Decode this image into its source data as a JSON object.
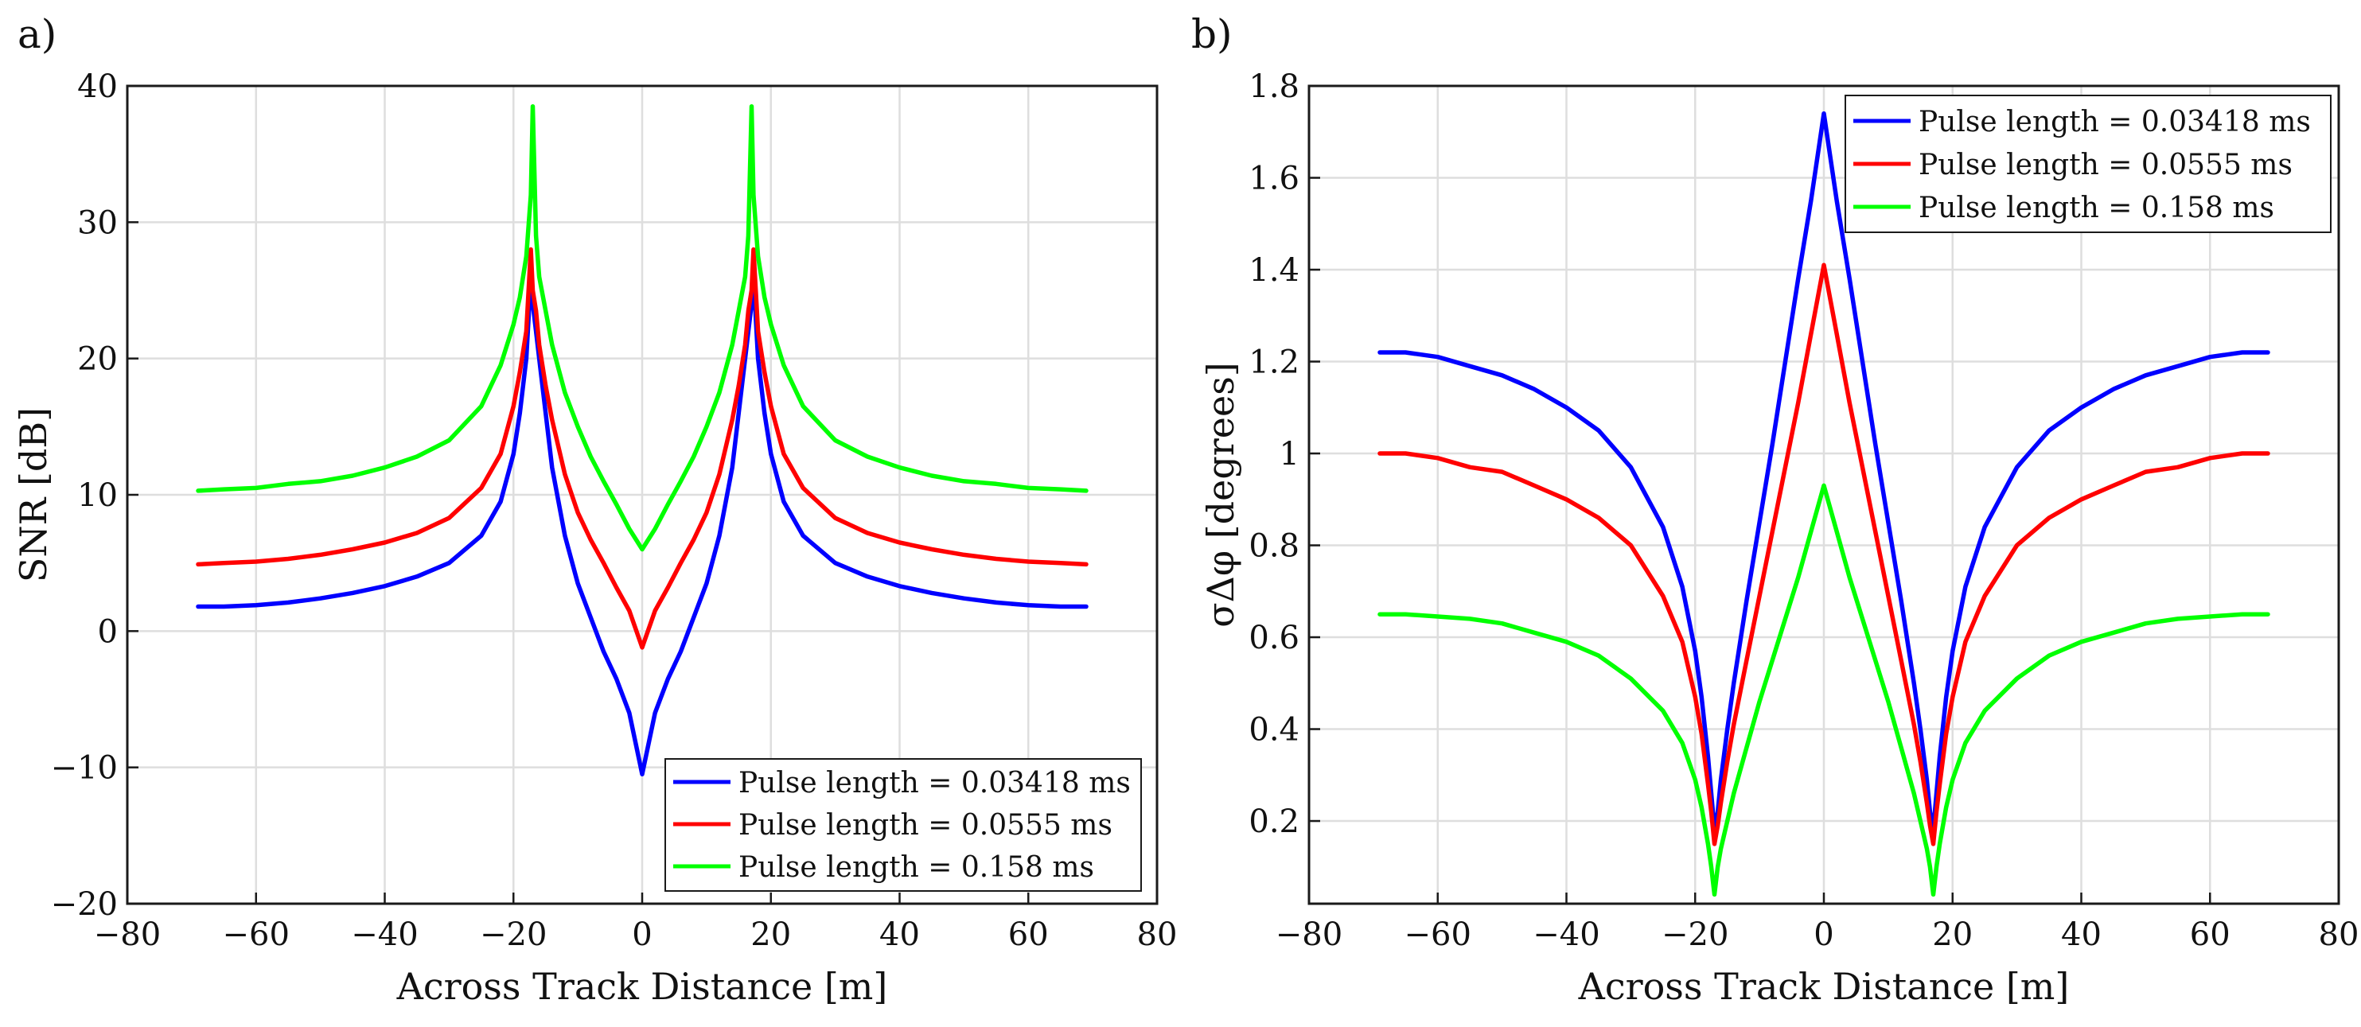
{
  "chart_data": [
    {
      "panel_label": "a)",
      "type": "line",
      "title": "",
      "xlabel": "Across Track Distance [m]",
      "ylabel": "SNR [dB]",
      "xlim": [
        -80,
        80
      ],
      "ylim": [
        -20,
        40
      ],
      "xticks": [
        -80,
        -60,
        -40,
        -20,
        0,
        20,
        40,
        60,
        80
      ],
      "yticks": [
        -20,
        -10,
        0,
        10,
        20,
        30,
        40
      ],
      "xtick_labels": [
        "−80",
        "−60",
        "−40",
        "−20",
        "0",
        "20",
        "40",
        "60",
        "80"
      ],
      "ytick_labels": [
        "−20",
        "−10",
        "0",
        "10",
        "20",
        "30",
        "40"
      ],
      "grid": true,
      "legend_position": "bottom-right",
      "x": [
        0,
        2,
        4,
        6,
        8,
        10,
        12,
        14,
        15,
        16,
        16.5,
        17,
        17.3,
        18,
        19,
        20,
        22,
        25,
        30,
        35,
        40,
        45,
        50,
        55,
        60,
        65,
        69
      ],
      "series": [
        {
          "name": "Pulse length = 0.03418 ms",
          "color": "#0000ff",
          "values": [
            -10.5,
            -6,
            -3.5,
            -1.5,
            1,
            3.5,
            7,
            12,
            16,
            20,
            22,
            24,
            26,
            20,
            16,
            13,
            9.5,
            7,
            5,
            4,
            3.3,
            2.8,
            2.4,
            2.1,
            1.9,
            1.8,
            1.8
          ]
        },
        {
          "name": "Pulse length = 0.0555 ms",
          "color": "#ff0000",
          "values": [
            -1.2,
            1.5,
            3.2,
            5,
            6.7,
            8.7,
            11.5,
            15.5,
            18,
            21,
            23.5,
            25,
            28,
            22,
            19,
            16.5,
            13,
            10.5,
            8.3,
            7.2,
            6.5,
            6,
            5.6,
            5.3,
            5.1,
            5,
            4.9
          ]
        },
        {
          "name": "Pulse length = 0.158 ms",
          "color": "#00ff00",
          "values": [
            6,
            7.5,
            9.3,
            11,
            12.8,
            15,
            17.5,
            21,
            23.5,
            26,
            29,
            38.5,
            32,
            27.5,
            24.5,
            22.5,
            19.5,
            16.5,
            14,
            12.8,
            12,
            11.4,
            11,
            10.8,
            10.5,
            10.4,
            10.3
          ]
        }
      ]
    },
    {
      "panel_label": "b)",
      "type": "line",
      "title": "",
      "xlabel": "Across Track Distance [m]",
      "ylabel": "σΔφ [degrees]",
      "xlim": [
        -80,
        80
      ],
      "ylim": [
        0.02,
        1.8
      ],
      "xticks": [
        -80,
        -60,
        -40,
        -20,
        0,
        20,
        40,
        60,
        80
      ],
      "yticks": [
        0.2,
        0.4,
        0.6,
        0.8,
        1,
        1.2,
        1.4,
        1.6,
        1.8
      ],
      "xtick_labels": [
        "−80",
        "−60",
        "−40",
        "−20",
        "0",
        "20",
        "40",
        "60",
        "80"
      ],
      "ytick_labels": [
        "0.2",
        "0.4",
        "0.6",
        "0.8",
        "1",
        "1.2",
        "1.4",
        "1.6",
        "1.8"
      ],
      "grid": true,
      "legend_position": "top-right",
      "x": [
        0,
        2,
        4,
        6,
        8,
        10,
        12,
        14,
        15,
        16,
        16.5,
        17,
        17.5,
        18,
        19,
        20,
        22,
        25,
        30,
        35,
        40,
        45,
        50,
        55,
        60,
        65,
        69
      ],
      "series": [
        {
          "name": "Pulse length = 0.03418 ms",
          "color": "#0000ff",
          "values": [
            1.74,
            1.55,
            1.38,
            1.2,
            1.02,
            0.85,
            0.68,
            0.5,
            0.4,
            0.29,
            0.22,
            0.18,
            0.26,
            0.34,
            0.47,
            0.57,
            0.71,
            0.84,
            0.97,
            1.05,
            1.1,
            1.14,
            1.17,
            1.19,
            1.21,
            1.22,
            1.22
          ]
        },
        {
          "name": "Pulse length = 0.0555 ms",
          "color": "#ff0000",
          "values": [
            1.41,
            1.26,
            1.11,
            0.97,
            0.83,
            0.69,
            0.55,
            0.41,
            0.33,
            0.24,
            0.19,
            0.15,
            0.22,
            0.28,
            0.39,
            0.47,
            0.59,
            0.69,
            0.8,
            0.86,
            0.9,
            0.93,
            0.96,
            0.97,
            0.99,
            1,
            1
          ]
        },
        {
          "name": "Pulse length = 0.158 ms",
          "color": "#00ff00",
          "values": [
            0.93,
            0.83,
            0.73,
            0.64,
            0.55,
            0.46,
            0.36,
            0.26,
            0.2,
            0.14,
            0.1,
            0.04,
            0.1,
            0.15,
            0.23,
            0.29,
            0.37,
            0.44,
            0.51,
            0.56,
            0.59,
            0.61,
            0.63,
            0.64,
            0.645,
            0.65,
            0.65
          ]
        }
      ]
    }
  ]
}
